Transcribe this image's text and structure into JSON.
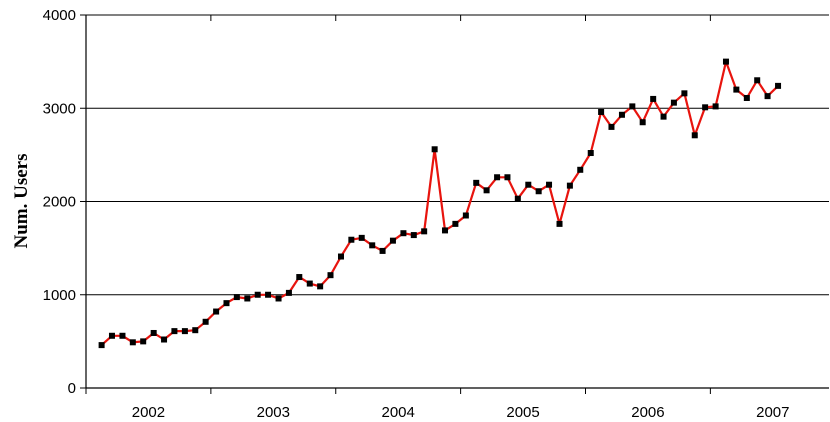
{
  "chart_data": {
    "type": "line",
    "title": "",
    "xlabel": "",
    "ylabel": "Num. Users",
    "ylim": [
      0,
      4000
    ],
    "xlim": [
      2001.5,
      2007.45
    ],
    "yticks": [
      0,
      1000,
      2000,
      3000,
      4000
    ],
    "ytick_labels": [
      "0",
      "1000",
      "2000",
      "3000",
      "4000"
    ],
    "xtick_labels": [
      {
        "label": "2002",
        "at": 2002
      },
      {
        "label": "2003",
        "at": 2003
      },
      {
        "label": "2004",
        "at": 2004
      },
      {
        "label": "2005",
        "at": 2005
      },
      {
        "label": "2006",
        "at": 2006
      },
      {
        "label": "2007",
        "at": 2007
      }
    ],
    "year_dividers": [
      2001.5,
      2002.5,
      2003.5,
      2004.5,
      2005.5,
      2006.5
    ],
    "grid": "horizontal",
    "line_color": "#e8140e",
    "marker_color": "#000000",
    "series": [
      {
        "x": [
          2001.625,
          2001.708,
          2001.792,
          2001.875,
          2001.958,
          2002.042,
          2002.125,
          2002.208,
          2002.292,
          2002.375,
          2002.458,
          2002.542,
          2002.625,
          2002.708,
          2002.792,
          2002.875,
          2002.958,
          2003.042,
          2003.125,
          2003.208,
          2003.292,
          2003.375,
          2003.458,
          2003.542,
          2003.625,
          2003.708,
          2003.792,
          2003.875,
          2003.958,
          2004.042,
          2004.125,
          2004.208,
          2004.292,
          2004.375,
          2004.458,
          2004.542,
          2004.625,
          2004.708,
          2004.792,
          2004.875,
          2004.958,
          2005.042,
          2005.125,
          2005.208,
          2005.292,
          2005.375,
          2005.458,
          2005.542,
          2005.625,
          2005.708,
          2005.792,
          2005.875,
          2005.958,
          2006.042,
          2006.125,
          2006.208,
          2006.292,
          2006.375,
          2006.458,
          2006.542,
          2006.625,
          2006.708,
          2006.792,
          2006.875,
          2006.958,
          2007.042
        ],
        "y": [
          460,
          560,
          560,
          490,
          500,
          590,
          520,
          610,
          610,
          620,
          710,
          820,
          910,
          975,
          960,
          1000,
          1000,
          960,
          1020,
          1190,
          1120,
          1090,
          1210,
          1410,
          1590,
          1610,
          1530,
          1470,
          1580,
          1660,
          1640,
          1680,
          2560,
          1690,
          1760,
          1850,
          2200,
          2120,
          2260,
          2260,
          2030,
          2180,
          2110,
          2180,
          1760,
          2170,
          2340,
          2520,
          2960,
          2800,
          2930,
          3020,
          2850,
          3100,
          2910,
          3060,
          3160,
          2710,
          3010,
          3020,
          3500,
          3200,
          3110,
          3300,
          3130,
          3240
        ]
      }
    ]
  }
}
